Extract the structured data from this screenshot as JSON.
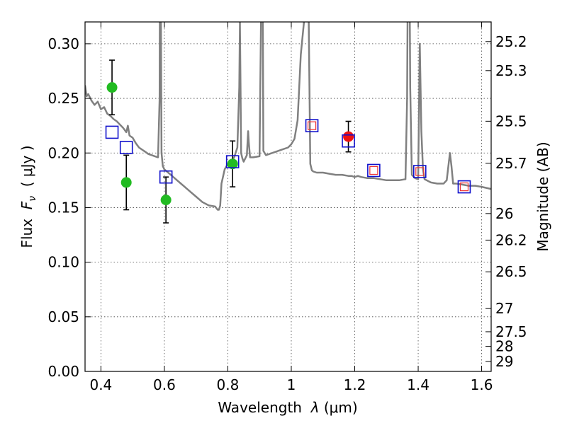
{
  "chart_data": {
    "type": "scatter",
    "title": "",
    "xlabel_prefix": "Wavelength  ",
    "xlabel_symbol": "λ",
    "xlabel_unit": " (μm)",
    "ylabel_prefix": "Flux  ",
    "ylabel_symbol": "F",
    "ylabel_sub": "ν",
    "ylabel_unit": "  ( μJy )",
    "y2label": "Magnitude (AB)",
    "xlim": [
      0.35,
      1.63
    ],
    "ylim": [
      0.0,
      0.32
    ],
    "grid": true,
    "x_ticks": [
      0.4,
      0.6,
      0.8,
      1.0,
      1.2,
      1.4,
      1.6
    ],
    "x_tick_labels": [
      "0.4",
      "0.6",
      "0.8",
      "1",
      "1.2",
      "1.4",
      "1.6"
    ],
    "y_ticks": [
      0.0,
      0.05,
      0.1,
      0.15,
      0.2,
      0.25,
      0.3
    ],
    "y_tick_labels": [
      "0.00",
      "0.05",
      "0.10",
      "0.15",
      "0.20",
      "0.25",
      "0.30"
    ],
    "y2_ticks": [
      {
        "mag": 25.2,
        "label": "25.2"
      },
      {
        "mag": 25.3,
        "label": "25.3"
      },
      {
        "mag": 25.5,
        "label": "25.5"
      },
      {
        "mag": 25.7,
        "label": "25.7"
      },
      {
        "mag": 26.0,
        "label": "26"
      },
      {
        "mag": 26.2,
        "label": "26.2"
      },
      {
        "mag": 26.5,
        "label": "26.5"
      },
      {
        "mag": 27.0,
        "label": "27"
      },
      {
        "mag": 27.5,
        "label": "27.5"
      },
      {
        "mag": 28.0,
        "label": "28"
      },
      {
        "mag": 29.0,
        "label": "29"
      }
    ],
    "colors": {
      "model_sed": "#808080",
      "observed": "#22bb22",
      "observed_alt": "#ee1111",
      "model_band": "#1111cc",
      "model_band_inner": "#ee3333",
      "errorbar": "#000000",
      "grid": "#444444"
    },
    "series": [
      {
        "name": "model SED",
        "style": "line",
        "x": [
          0.35,
          0.355,
          0.36,
          0.37,
          0.38,
          0.39,
          0.4,
          0.41,
          0.42,
          0.43,
          0.44,
          0.45,
          0.46,
          0.47,
          0.48,
          0.485,
          0.49,
          0.5,
          0.51,
          0.52,
          0.53,
          0.54,
          0.55,
          0.56,
          0.57,
          0.58,
          0.585,
          0.587,
          0.589,
          0.591,
          0.595,
          0.6,
          0.62,
          0.64,
          0.66,
          0.68,
          0.7,
          0.72,
          0.74,
          0.76,
          0.768,
          0.772,
          0.776,
          0.78,
          0.79,
          0.8,
          0.81,
          0.82,
          0.83,
          0.836,
          0.838,
          0.84,
          0.842,
          0.846,
          0.85,
          0.86,
          0.864,
          0.866,
          0.87,
          0.88,
          0.9,
          0.906,
          0.908,
          0.91,
          0.912,
          0.92,
          0.93,
          0.95,
          0.97,
          0.99,
          1.0,
          1.01,
          1.02,
          1.03,
          1.04,
          1.045,
          1.05,
          1.055,
          1.06,
          1.065,
          1.07,
          1.08,
          1.1,
          1.12,
          1.14,
          1.16,
          1.18,
          1.19,
          1.2,
          1.21,
          1.22,
          1.24,
          1.26,
          1.28,
          1.3,
          1.32,
          1.34,
          1.36,
          1.365,
          1.37,
          1.375,
          1.38,
          1.39,
          1.4,
          1.405,
          1.41,
          1.415,
          1.42,
          1.44,
          1.46,
          1.48,
          1.49,
          1.5,
          1.505,
          1.51,
          1.52,
          1.54,
          1.56,
          1.58,
          1.6,
          1.63
        ],
        "y": [
          0.262,
          0.252,
          0.254,
          0.248,
          0.244,
          0.247,
          0.24,
          0.242,
          0.236,
          0.234,
          0.231,
          0.229,
          0.226,
          0.223,
          0.219,
          0.225,
          0.216,
          0.214,
          0.209,
          0.205,
          0.203,
          0.201,
          0.199,
          0.198,
          0.197,
          0.196,
          0.25,
          0.5,
          0.33,
          0.2,
          0.188,
          0.185,
          0.18,
          0.175,
          0.17,
          0.165,
          0.16,
          0.155,
          0.152,
          0.151,
          0.148,
          0.148,
          0.152,
          0.172,
          0.185,
          0.19,
          0.192,
          0.196,
          0.205,
          0.26,
          0.32,
          0.26,
          0.2,
          0.195,
          0.192,
          0.198,
          0.22,
          0.21,
          0.196,
          0.196,
          0.197,
          0.36,
          0.5,
          0.34,
          0.202,
          0.198,
          0.199,
          0.201,
          0.203,
          0.205,
          0.208,
          0.213,
          0.23,
          0.29,
          0.32,
          0.4,
          0.36,
          0.32,
          0.19,
          0.184,
          0.183,
          0.182,
          0.182,
          0.181,
          0.18,
          0.18,
          0.179,
          0.179,
          0.178,
          0.179,
          0.178,
          0.177,
          0.177,
          0.176,
          0.175,
          0.175,
          0.175,
          0.176,
          0.25,
          0.5,
          0.26,
          0.18,
          0.177,
          0.176,
          0.3,
          0.22,
          0.185,
          0.176,
          0.173,
          0.172,
          0.172,
          0.175,
          0.2,
          0.188,
          0.172,
          0.172,
          0.171,
          0.17,
          0.17,
          0.169,
          0.167
        ]
      },
      {
        "name": "observed photometry",
        "style": "circle",
        "color_key": "observed",
        "x": [
          0.435,
          0.48,
          0.605,
          0.815
        ],
        "y": [
          0.26,
          0.173,
          0.157,
          0.19
        ],
        "yerr": [
          0.025,
          0.025,
          0.021,
          0.021
        ]
      },
      {
        "name": "observed photometry (red)",
        "style": "circle",
        "color_key": "observed_alt",
        "x": [
          1.18
        ],
        "y": [
          0.215
        ],
        "yerr": [
          0.014
        ]
      },
      {
        "name": "model band flux",
        "style": "square",
        "color_key": "model_band",
        "x": [
          0.435,
          0.48,
          0.605,
          0.815,
          1.065,
          1.18,
          1.26,
          1.405,
          1.545
        ],
        "y": [
          0.219,
          0.205,
          0.178,
          0.192,
          0.225,
          0.211,
          0.184,
          0.183,
          0.169
        ]
      },
      {
        "name": "model band flux (inner)",
        "style": "inner-square",
        "color_key": "model_band_inner",
        "x": [
          1.065,
          1.26,
          1.405,
          1.545
        ],
        "y": [
          0.225,
          0.184,
          0.183,
          0.169
        ]
      }
    ]
  }
}
